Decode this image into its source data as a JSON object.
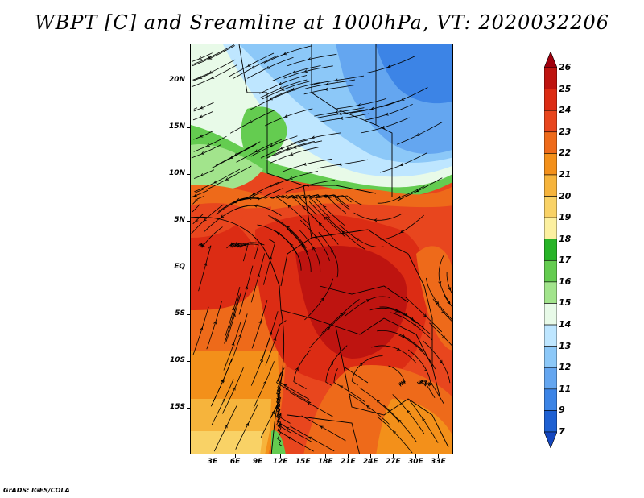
{
  "title": "WBPT [C] and Sreamline at 1000hPa, VT: 2020032206",
  "credit": "GrADS: IGES/COLA",
  "map": {
    "lon_range": [
      0,
      35
    ],
    "lat_range": [
      -20,
      24
    ],
    "y_ticks": [
      {
        "lat": 20,
        "label": "20N"
      },
      {
        "lat": 15,
        "label": "15N"
      },
      {
        "lat": 10,
        "label": "10N"
      },
      {
        "lat": 5,
        "label": "5N"
      },
      {
        "lat": 0,
        "label": "EQ"
      },
      {
        "lat": -5,
        "label": "5S"
      },
      {
        "lat": -10,
        "label": "10S"
      },
      {
        "lat": -15,
        "label": "15S"
      }
    ],
    "x_ticks": [
      {
        "lon": 3,
        "label": "3E"
      },
      {
        "lon": 6,
        "label": "6E"
      },
      {
        "lon": 9,
        "label": "9E"
      },
      {
        "lon": 12,
        "label": "12E"
      },
      {
        "lon": 15,
        "label": "15E"
      },
      {
        "lon": 18,
        "label": "18E"
      },
      {
        "lon": 21,
        "label": "21E"
      },
      {
        "lon": 24,
        "label": "24E"
      },
      {
        "lon": 27,
        "label": "27E"
      },
      {
        "lon": 30,
        "label": "30E"
      },
      {
        "lon": 33,
        "label": "33E"
      }
    ]
  },
  "colorbar": {
    "levels": [
      "26",
      "25",
      "24",
      "23",
      "22",
      "21",
      "20",
      "19",
      "18",
      "17",
      "16",
      "15",
      "14",
      "13",
      "12",
      "11",
      "9",
      "7"
    ],
    "colors": [
      "#a0000d",
      "#be1410",
      "#dc2c14",
      "#e8461e",
      "#ee6a1a",
      "#f3901a",
      "#f6b43c",
      "#f9d266",
      "#fcf0a0",
      "#28b428",
      "#64cc50",
      "#a2e48c",
      "#e8fae8",
      "#bee6ff",
      "#8cc8f8",
      "#64a6f0",
      "#3c84e6",
      "#1e60d2",
      "#1446be"
    ]
  }
}
